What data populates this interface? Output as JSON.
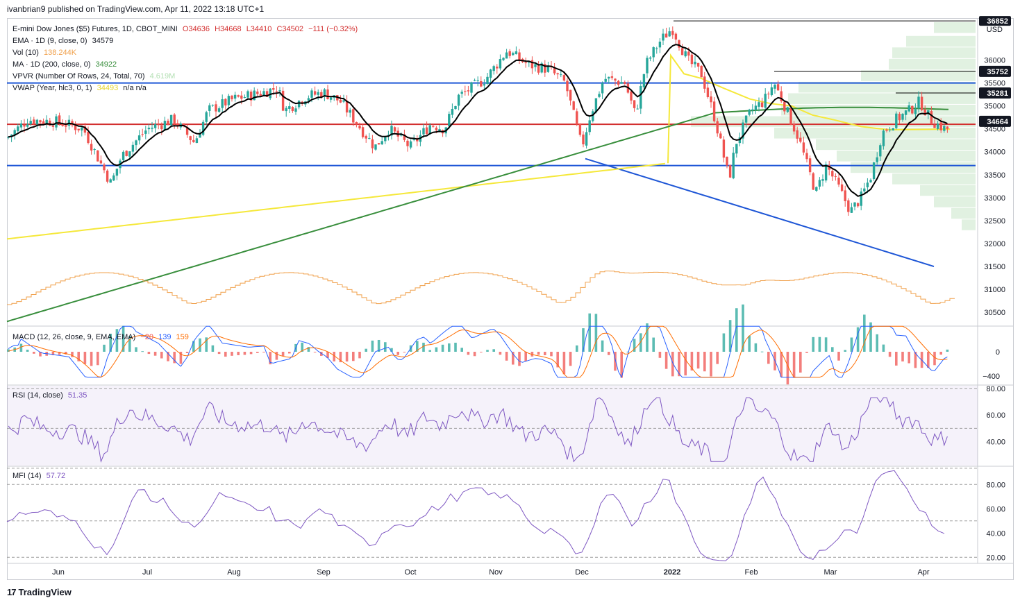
{
  "header": {
    "published": "ivanbrian9 published on TradingView.com, Apr 11, 2022 13:18 UTC+1"
  },
  "legend": {
    "main": {
      "title": "E-mini Dow Jones ($5) Futures, 1D, CBOT_MINI",
      "o": "O34636",
      "h": "H34668",
      "l": "L34410",
      "c": "C34502",
      "chg": "−111 (−0.32%)"
    },
    "ema": {
      "label": "EMA · 1D (9, close, 0)",
      "value": "34579"
    },
    "vol": {
      "label": "Vol (10)",
      "value": "138.244K"
    },
    "ma": {
      "label": "MA · 1D (200, close, 0)",
      "value": "34922"
    },
    "vpvr": {
      "label": "VPVR (Number Of Rows, 24, Total, 70)",
      "value": "4.619M"
    },
    "vwap": {
      "label": "VWAP (Year, hlc3, 0, 1)",
      "value": "34493",
      "extra": "n/a  n/a"
    },
    "macd": {
      "label": "MACD (12, 26, close, 9, EMA, EMA)",
      "v1": "−20",
      "v2": "139",
      "v3": "159"
    },
    "rsi": {
      "label": "RSI (14, close)",
      "value": "51.35"
    },
    "mfi": {
      "label": "MFI (14)",
      "value": "57.72"
    }
  },
  "price_axis": {
    "currency": "USD",
    "ticks": [
      "36000",
      "35500",
      "35000",
      "34500",
      "34000",
      "33500",
      "33000",
      "32500",
      "32000",
      "31500",
      "31000",
      "30500"
    ],
    "top_tag": "36852",
    "tags": [
      {
        "label": "35752",
        "color": "#131722"
      },
      {
        "label": "35281",
        "color": "#131722"
      },
      {
        "label": "34664",
        "color": "#131722"
      }
    ]
  },
  "macd_axis": {
    "ticks": [
      "0",
      "−400"
    ]
  },
  "rsi_axis": {
    "ticks": [
      "80.00",
      "60.00",
      "40.00"
    ]
  },
  "mfi_axis": {
    "ticks": [
      "80.00",
      "60.00",
      "40.00",
      "20.00"
    ]
  },
  "time_axis": [
    "Jun",
    "Jul",
    "Aug",
    "Sep",
    "Oct",
    "Nov",
    "Dec",
    "2022",
    "Feb",
    "Mar",
    "Apr"
  ],
  "colors": {
    "up": "#26a69a",
    "down": "#ef5350",
    "ema": "#000000",
    "ma": "#388e3c",
    "vwap": "#f5e83a",
    "resistance": "#d32f2f",
    "support": "#1e56d6",
    "volume": "#f0a04b",
    "macd": "#2962ff",
    "signal": "#ff6d00",
    "rsi": "#7e57c2",
    "vpvr": "#c8e6c9"
  },
  "branding": {
    "name": "TradingView"
  },
  "chart_data": [
    {
      "type": "candlestick",
      "title": "E-mini Dow Jones ($5) Futures, 1D, CBOT_MINI",
      "ylim": [
        30200,
        36900
      ],
      "x": [
        "Jun",
        "Jul",
        "Aug",
        "Sep",
        "Oct",
        "Nov",
        "Dec",
        "2022",
        "Feb",
        "Mar",
        "Apr"
      ],
      "close_path_monthly": [
        {
          "x": "May",
          "close": 34400
        },
        {
          "x": "Jun",
          "close": 34600
        },
        {
          "x": "Jun-late",
          "close": 33900
        },
        {
          "x": "Jul",
          "close": 34700
        },
        {
          "x": "Aug",
          "close": 35300
        },
        {
          "x": "Sep",
          "close": 35200
        },
        {
          "x": "Sep-late",
          "close": 33900
        },
        {
          "x": "Oct",
          "close": 34300
        },
        {
          "x": "Nov",
          "close": 36100
        },
        {
          "x": "Dec",
          "close": 34100
        },
        {
          "x": "Dec-mid",
          "close": 35600
        },
        {
          "x": "2022",
          "close": 36700
        },
        {
          "x": "Jan-late",
          "close": 34000
        },
        {
          "x": "Feb",
          "close": 35100
        },
        {
          "x": "Feb-late",
          "close": 33200
        },
        {
          "x": "Mar",
          "close": 33800
        },
        {
          "x": "Mar-mid",
          "close": 32700
        },
        {
          "x": "Mar-late",
          "close": 34900
        },
        {
          "x": "Apr",
          "close": 34600
        },
        {
          "x": "Apr-11",
          "close": 34502
        }
      ],
      "horizontal_levels": [
        {
          "name": "resistance",
          "value": 34600
        },
        {
          "name": "upper-support",
          "value": 35500
        },
        {
          "name": "lower-support",
          "value": 33700
        }
      ],
      "trendline": [
        {
          "x": "Dec",
          "y": 33850
        },
        {
          "x": "Apr",
          "y": 31500
        }
      ]
    },
    {
      "type": "bar",
      "title": "MACD (12, 26, close, 9, EMA, EMA)",
      "ylim": [
        -450,
        450
      ],
      "latest": {
        "hist": -20,
        "macd": 139,
        "signal": 159
      }
    },
    {
      "type": "line",
      "title": "RSI (14, close)",
      "ylim": [
        25,
        80
      ],
      "latest": 51.35
    },
    {
      "type": "line",
      "title": "MFI (14)",
      "ylim": [
        15,
        95
      ],
      "latest": 57.72
    }
  ]
}
